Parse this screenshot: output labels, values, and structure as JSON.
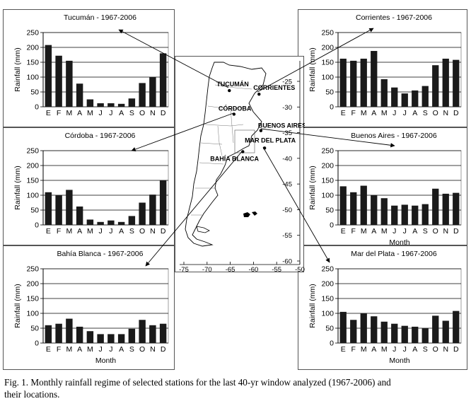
{
  "chart_data": [
    {
      "type": "bar",
      "title": "Tucumán - 1967-2006",
      "ylabel": "Rainfall (mm)",
      "xlabel": "",
      "ylim": [
        0,
        250
      ],
      "yticks": [
        0,
        50,
        100,
        150,
        200,
        250
      ],
      "categories": [
        "E",
        "F",
        "M",
        "A",
        "M",
        "J",
        "J",
        "A",
        "S",
        "O",
        "N",
        "D"
      ],
      "values": [
        208,
        172,
        155,
        78,
        25,
        12,
        12,
        10,
        28,
        80,
        100,
        180
      ]
    },
    {
      "type": "bar",
      "title": "Corrientes - 1967-2006",
      "ylabel": "Rainfall (mm)",
      "xlabel": "",
      "ylim": [
        0,
        250
      ],
      "yticks": [
        0,
        50,
        100,
        150,
        200,
        250
      ],
      "categories": [
        "E",
        "F",
        "M",
        "A",
        "M",
        "J",
        "J",
        "A",
        "S",
        "O",
        "N",
        "D"
      ],
      "values": [
        162,
        155,
        162,
        188,
        93,
        65,
        45,
        55,
        70,
        140,
        162,
        158
      ]
    },
    {
      "type": "bar",
      "title": "Córdoba - 1967-2006",
      "ylabel": "Rainfall (mm)",
      "xlabel": "",
      "ylim": [
        0,
        250
      ],
      "yticks": [
        0,
        50,
        100,
        150,
        200,
        250
      ],
      "categories": [
        "E",
        "F",
        "M",
        "A",
        "M",
        "J",
        "J",
        "A",
        "S",
        "O",
        "N",
        "D"
      ],
      "values": [
        110,
        100,
        118,
        62,
        18,
        10,
        15,
        10,
        30,
        75,
        102,
        150
      ]
    },
    {
      "type": "bar",
      "title": "Buenos Aires - 1967-2006",
      "ylabel": "Rainfall (mm)",
      "xlabel": "Month",
      "ylim": [
        0,
        250
      ],
      "yticks": [
        0,
        50,
        100,
        150,
        200,
        250
      ],
      "categories": [
        "E",
        "F",
        "M",
        "A",
        "M",
        "J",
        "J",
        "A",
        "S",
        "O",
        "N",
        "D"
      ],
      "values": [
        130,
        110,
        132,
        100,
        90,
        65,
        68,
        65,
        70,
        122,
        105,
        108
      ]
    },
    {
      "type": "bar",
      "title": "Bahía Blanca - 1967-2006",
      "ylabel": "Rainfall (mm)",
      "xlabel": "Month",
      "ylim": [
        0,
        250
      ],
      "yticks": [
        0,
        50,
        100,
        150,
        200,
        250
      ],
      "categories": [
        "E",
        "F",
        "M",
        "A",
        "M",
        "J",
        "J",
        "A",
        "S",
        "O",
        "N",
        "D"
      ],
      "values": [
        60,
        65,
        82,
        55,
        40,
        30,
        30,
        30,
        48,
        78,
        60,
        65
      ]
    },
    {
      "type": "bar",
      "title": "Mar del Plata - 1967-2006",
      "ylabel": "Rainfall (mm)",
      "xlabel": "Month",
      "ylim": [
        0,
        250
      ],
      "yticks": [
        0,
        50,
        100,
        150,
        200,
        250
      ],
      "categories": [
        "E",
        "F",
        "M",
        "A",
        "M",
        "J",
        "J",
        "A",
        "S",
        "O",
        "N",
        "D"
      ],
      "values": [
        105,
        78,
        100,
        90,
        72,
        65,
        58,
        55,
        50,
        92,
        75,
        108
      ]
    }
  ],
  "map": {
    "x_ticks": [
      "-75",
      "-70",
      "-65",
      "-60",
      "-55",
      "-50"
    ],
    "y_ticks": [
      "-25",
      "-30",
      "-35",
      "-40",
      "-45",
      "-50",
      "-55",
      "-60"
    ],
    "stations": [
      {
        "name": "TUCUMÁN",
        "lon": -65.2,
        "lat": -26.8
      },
      {
        "name": "CORRIENTES",
        "lon": -58.8,
        "lat": -27.5
      },
      {
        "name": "CÓRDOBA",
        "lon": -64.2,
        "lat": -31.4
      },
      {
        "name": "BUENOS AIRES",
        "lon": -58.4,
        "lat": -34.6
      },
      {
        "name": "MAR DEL PLATA",
        "lon": -57.6,
        "lat": -38.0
      },
      {
        "name": "BAHÍA BLANCA",
        "lon": -62.3,
        "lat": -38.7
      }
    ]
  },
  "caption": {
    "line1": "Fig. 1. Monthly rainfall regime of selected stations for the last 40-yr window analyzed (1967-2006) and",
    "line2": "their locations."
  }
}
